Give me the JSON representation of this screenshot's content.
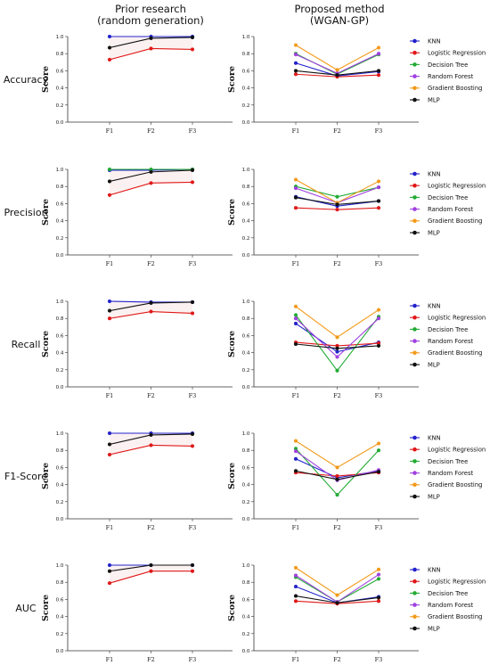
{
  "figure": {
    "column_titles": [
      "Prior research\n(random generation)",
      "Proposed method\n(WGAN-GP)"
    ]
  },
  "colors": {
    "KNN": "#2222cc",
    "Logistic Regression": "#e01818",
    "Decision Tree": "#22aa33",
    "Random Forest": "#a040e0",
    "Gradient Boosting": "#f39a1a",
    "MLP": "#111111"
  },
  "chart_data": [
    {
      "type": "line",
      "row_label": "Accuracy",
      "column": "Prior research (random generation)",
      "categories": [
        "F1",
        "F2",
        "F3"
      ],
      "xlabel": "",
      "ylabel": "Score",
      "ylim": [
        0,
        1.0
      ],
      "yticks": [
        "0.0",
        "0.2",
        "0.4",
        "0.6",
        "0.8",
        "1.0"
      ],
      "legend": false,
      "band": true,
      "series": [
        {
          "name": "KNN",
          "values": [
            1.0,
            1.0,
            1.0
          ]
        },
        {
          "name": "Logistic Regression",
          "values": [
            0.73,
            0.86,
            0.85
          ]
        },
        {
          "name": "MLP",
          "values": [
            0.87,
            0.98,
            0.99
          ]
        }
      ]
    },
    {
      "type": "line",
      "row_label": "Accuracy",
      "column": "Proposed method (WGAN-GP)",
      "categories": [
        "F1",
        "F2",
        "F3"
      ],
      "xlabel": "",
      "ylabel": "Score",
      "ylim": [
        0,
        1.0
      ],
      "yticks": [
        "0.0",
        "0.2",
        "0.4",
        "0.6",
        "0.8",
        "1.0"
      ],
      "legend": true,
      "series": [
        {
          "name": "KNN",
          "values": [
            0.69,
            0.54,
            0.59
          ]
        },
        {
          "name": "Logistic Regression",
          "values": [
            0.56,
            0.53,
            0.55
          ]
        },
        {
          "name": "Decision Tree",
          "values": [
            0.8,
            0.56,
            0.79
          ]
        },
        {
          "name": "Random Forest",
          "values": [
            0.79,
            0.57,
            0.8
          ]
        },
        {
          "name": "Gradient Boosting",
          "values": [
            0.9,
            0.61,
            0.87
          ]
        },
        {
          "name": "MLP",
          "values": [
            0.6,
            0.55,
            0.6
          ]
        }
      ]
    },
    {
      "type": "line",
      "row_label": "Precision",
      "column": "Prior research (random generation)",
      "categories": [
        "F1",
        "F2",
        "F3"
      ],
      "xlabel": "",
      "ylabel": "Score",
      "ylim": [
        0,
        1.0
      ],
      "yticks": [
        "0.0",
        "0.2",
        "0.4",
        "0.6",
        "0.8",
        "1.0"
      ],
      "legend": false,
      "band": true,
      "series": [
        {
          "name": "KNN",
          "values": [
            0.99,
            0.99,
            1.0
          ]
        },
        {
          "name": "Logistic Regression",
          "values": [
            0.7,
            0.84,
            0.85
          ]
        },
        {
          "name": "Decision Tree",
          "values": [
            1.0,
            1.0,
            1.0
          ]
        },
        {
          "name": "MLP",
          "values": [
            0.86,
            0.97,
            0.99
          ]
        }
      ]
    },
    {
      "type": "line",
      "row_label": "Precision",
      "column": "Proposed method (WGAN-GP)",
      "categories": [
        "F1",
        "F2",
        "F3"
      ],
      "xlabel": "",
      "ylabel": "Score",
      "ylim": [
        0,
        1.0
      ],
      "yticks": [
        "0.0",
        "0.2",
        "0.4",
        "0.6",
        "0.8",
        "1.0"
      ],
      "legend": true,
      "series": [
        {
          "name": "KNN",
          "values": [
            0.68,
            0.57,
            0.63
          ]
        },
        {
          "name": "Logistic Regression",
          "values": [
            0.55,
            0.53,
            0.55
          ]
        },
        {
          "name": "Decision Tree",
          "values": [
            0.8,
            0.68,
            0.79
          ]
        },
        {
          "name": "Random Forest",
          "values": [
            0.78,
            0.61,
            0.79
          ]
        },
        {
          "name": "Gradient Boosting",
          "values": [
            0.88,
            0.61,
            0.86
          ]
        },
        {
          "name": "MLP",
          "values": [
            0.67,
            0.59,
            0.63
          ]
        }
      ]
    },
    {
      "type": "line",
      "row_label": "Recall",
      "column": "Prior research (random generation)",
      "categories": [
        "F1",
        "F2",
        "F3"
      ],
      "xlabel": "",
      "ylabel": "Score",
      "ylim": [
        0,
        1.0
      ],
      "yticks": [
        "0.0",
        "0.2",
        "0.4",
        "0.6",
        "0.8",
        "1.0"
      ],
      "legend": false,
      "band": true,
      "series": [
        {
          "name": "KNN",
          "values": [
            1.0,
            0.99,
            0.99
          ]
        },
        {
          "name": "Logistic Regression",
          "values": [
            0.8,
            0.88,
            0.86
          ]
        },
        {
          "name": "MLP",
          "values": [
            0.89,
            0.98,
            0.99
          ]
        }
      ]
    },
    {
      "type": "line",
      "row_label": "Recall",
      "column": "Proposed method (WGAN-GP)",
      "categories": [
        "F1",
        "F2",
        "F3"
      ],
      "xlabel": "",
      "ylabel": "Score",
      "ylim": [
        0,
        1.0
      ],
      "yticks": [
        "0.0",
        "0.2",
        "0.4",
        "0.6",
        "0.8",
        "1.0"
      ],
      "legend": true,
      "series": [
        {
          "name": "KNN",
          "values": [
            0.74,
            0.41,
            0.52
          ]
        },
        {
          "name": "Logistic Regression",
          "values": [
            0.52,
            0.48,
            0.51
          ]
        },
        {
          "name": "Decision Tree",
          "values": [
            0.84,
            0.19,
            0.82
          ]
        },
        {
          "name": "Random Forest",
          "values": [
            0.8,
            0.35,
            0.8
          ]
        },
        {
          "name": "Gradient Boosting",
          "values": [
            0.94,
            0.58,
            0.9
          ]
        },
        {
          "name": "MLP",
          "values": [
            0.5,
            0.45,
            0.48
          ]
        }
      ]
    },
    {
      "type": "line",
      "row_label": "F1-Score",
      "column": "Prior research (random generation)",
      "categories": [
        "F1",
        "F2",
        "F3"
      ],
      "xlabel": "",
      "ylabel": "Score",
      "ylim": [
        0,
        1.0
      ],
      "yticks": [
        "0.0",
        "0.2",
        "0.4",
        "0.6",
        "0.8",
        "1.0"
      ],
      "legend": false,
      "band": true,
      "series": [
        {
          "name": "KNN",
          "values": [
            1.0,
            1.0,
            1.0
          ]
        },
        {
          "name": "Logistic Regression",
          "values": [
            0.75,
            0.86,
            0.85
          ]
        },
        {
          "name": "MLP",
          "values": [
            0.87,
            0.98,
            0.99
          ]
        }
      ]
    },
    {
      "type": "line",
      "row_label": "F1-Score",
      "column": "Proposed method (WGAN-GP)",
      "categories": [
        "F1",
        "F2",
        "F3"
      ],
      "xlabel": "",
      "ylabel": "Score",
      "ylim": [
        0,
        1.0
      ],
      "yticks": [
        "0.0",
        "0.2",
        "0.4",
        "0.6",
        "0.8",
        "1.0"
      ],
      "legend": true,
      "series": [
        {
          "name": "KNN",
          "values": [
            0.7,
            0.48,
            0.56
          ]
        },
        {
          "name": "Logistic Regression",
          "values": [
            0.54,
            0.5,
            0.54
          ]
        },
        {
          "name": "Decision Tree",
          "values": [
            0.82,
            0.28,
            0.8
          ]
        },
        {
          "name": "Random Forest",
          "values": [
            0.79,
            0.45,
            0.57
          ]
        },
        {
          "name": "Gradient Boosting",
          "values": [
            0.91,
            0.6,
            0.88
          ]
        },
        {
          "name": "MLP",
          "values": [
            0.56,
            0.46,
            0.55
          ]
        }
      ]
    },
    {
      "type": "line",
      "row_label": "AUC",
      "column": "Prior research (random generation)",
      "categories": [
        "F1",
        "F2",
        "F3"
      ],
      "xlabel": "",
      "ylabel": "Score",
      "ylim": [
        0,
        1.0
      ],
      "yticks": [
        "0.0",
        "0.2",
        "0.4",
        "0.6",
        "0.8",
        "1.0"
      ],
      "legend": false,
      "band": true,
      "series": [
        {
          "name": "KNN",
          "values": [
            1.0,
            1.0,
            1.0
          ]
        },
        {
          "name": "Logistic Regression",
          "values": [
            0.79,
            0.93,
            0.93
          ]
        },
        {
          "name": "MLP",
          "values": [
            0.93,
            1.0,
            1.0
          ]
        }
      ]
    },
    {
      "type": "line",
      "row_label": "AUC",
      "column": "Proposed method (WGAN-GP)",
      "categories": [
        "F1",
        "F2",
        "F3"
      ],
      "xlabel": "",
      "ylabel": "Score",
      "ylim": [
        0,
        1.0
      ],
      "yticks": [
        "0.0",
        "0.2",
        "0.4",
        "0.6",
        "0.8",
        "1.0"
      ],
      "legend": true,
      "series": [
        {
          "name": "KNN",
          "values": [
            0.75,
            0.56,
            0.63
          ]
        },
        {
          "name": "Logistic Regression",
          "values": [
            0.58,
            0.55,
            0.58
          ]
        },
        {
          "name": "Decision Tree",
          "values": [
            0.86,
            0.57,
            0.84
          ]
        },
        {
          "name": "Random Forest",
          "values": [
            0.88,
            0.57,
            0.89
          ]
        },
        {
          "name": "Gradient Boosting",
          "values": [
            0.97,
            0.65,
            0.95
          ]
        },
        {
          "name": "MLP",
          "values": [
            0.64,
            0.56,
            0.62
          ]
        }
      ]
    }
  ]
}
